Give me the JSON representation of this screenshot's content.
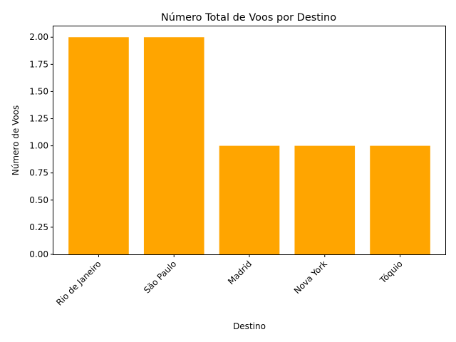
{
  "chart_data": {
    "type": "bar",
    "title": "Número Total de Voos por Destino",
    "xlabel": "Destino",
    "ylabel": "Número de Voos",
    "categories": [
      "Rio de Janeiro",
      "São Paulo",
      "Madrid",
      "Nova York",
      "Tóquio"
    ],
    "values": [
      2,
      2,
      1,
      1,
      1
    ],
    "ylim": [
      0,
      2.1
    ],
    "yticks": [
      "0.00",
      "0.25",
      "0.50",
      "0.75",
      "1.00",
      "1.25",
      "1.50",
      "1.75",
      "2.00"
    ],
    "bar_color": "#ffa500",
    "xtick_rotation_deg": 45,
    "grid": false,
    "legend": "none"
  }
}
